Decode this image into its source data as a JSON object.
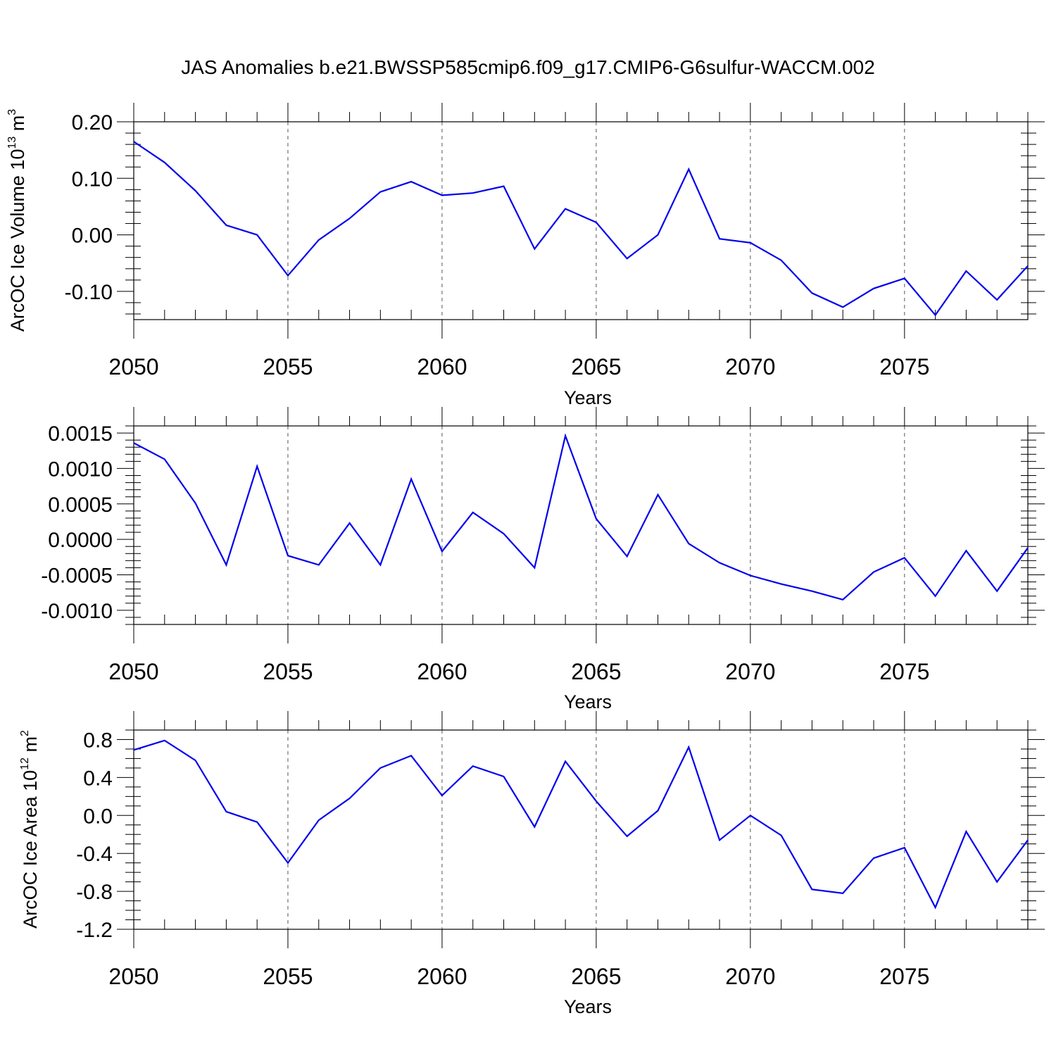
{
  "title": "JAS Anomalies b.e21.BWSSP585cmip6.f09_g17.CMIP6-G6sulfur-WACCM.002",
  "colors": {
    "series": "#0000ee",
    "frame": "#000000",
    "grid": "#555555"
  },
  "chart_data": [
    {
      "type": "line",
      "xlabel": "Years",
      "ylabel": "ArcOC Ice Volume 10",
      "ylabel_exp": "13",
      "ylabel_unit": " m",
      "ylabel_unit_exp": "3",
      "xlim": [
        2050,
        2079
      ],
      "ylim": [
        -0.15,
        0.2
      ],
      "xticks": [
        2050,
        2055,
        2060,
        2065,
        2070,
        2075
      ],
      "xtick_labels": [
        "2050",
        "2055",
        "2060",
        "2065",
        "2070",
        "2075"
      ],
      "yticks": [
        0.2,
        0.1,
        0.0,
        -0.1
      ],
      "ytick_labels": [
        "0.20",
        "0.10",
        "0.00",
        "-0.10"
      ],
      "yminor_step": 0.02,
      "vgrid": [
        2055,
        2060,
        2065,
        2070,
        2075
      ],
      "x": [
        2050,
        2051,
        2052,
        2053,
        2054,
        2055,
        2056,
        2057,
        2058,
        2059,
        2060,
        2061,
        2062,
        2063,
        2064,
        2065,
        2066,
        2067,
        2068,
        2069,
        2070,
        2071,
        2072,
        2073,
        2074,
        2075,
        2076,
        2077,
        2078,
        2079
      ],
      "values": [
        0.165,
        0.128,
        0.078,
        0.017,
        0.0,
        -0.072,
        -0.009,
        0.029,
        0.076,
        0.094,
        0.07,
        0.074,
        0.086,
        -0.025,
        0.046,
        0.022,
        -0.042,
        0.0,
        0.116,
        -0.007,
        -0.014,
        -0.045,
        -0.103,
        -0.128,
        -0.095,
        -0.077,
        -0.142,
        -0.064,
        -0.115,
        -0.055
      ]
    },
    {
      "type": "line",
      "xlabel": "Years",
      "ylabel": "",
      "xlim": [
        2050,
        2079
      ],
      "ylim": [
        -0.0012,
        0.0016
      ],
      "xticks": [
        2050,
        2055,
        2060,
        2065,
        2070,
        2075
      ],
      "xtick_labels": [
        "2050",
        "2055",
        "2060",
        "2065",
        "2070",
        "2075"
      ],
      "yticks": [
        0.0015,
        0.001,
        0.0005,
        0.0,
        -0.0005,
        -0.001
      ],
      "ytick_labels": [
        "0.0015",
        "0.0010",
        "0.0005",
        "0.0000",
        "-0.0005",
        "-0.0010"
      ],
      "yminor_step": 0.0001,
      "vgrid": [
        2055,
        2060,
        2065,
        2070,
        2075
      ],
      "x": [
        2050,
        2051,
        2052,
        2053,
        2054,
        2055,
        2056,
        2057,
        2058,
        2059,
        2060,
        2061,
        2062,
        2063,
        2064,
        2065,
        2066,
        2067,
        2068,
        2069,
        2070,
        2071,
        2072,
        2073,
        2074,
        2075,
        2076,
        2077,
        2078,
        2079
      ],
      "values": [
        0.00136,
        0.00113,
        0.00051,
        -0.00036,
        0.00103,
        -0.00023,
        -0.00036,
        0.00023,
        -0.00036,
        0.00085,
        -0.00017,
        0.00038,
        8e-05,
        -0.0004,
        0.00146,
        0.00029,
        -0.00024,
        0.00063,
        -6e-05,
        -0.00033,
        -0.00051,
        -0.00063,
        -0.00073,
        -0.00085,
        -0.00046,
        -0.00026,
        -0.0008,
        -0.00016,
        -0.00073,
        -0.00012
      ]
    },
    {
      "type": "line",
      "xlabel": "Years",
      "ylabel": "ArcOC Ice Area 10",
      "ylabel_exp": "12",
      "ylabel_unit": " m",
      "ylabel_unit_exp": "2",
      "xlim": [
        2050,
        2079
      ],
      "ylim": [
        -1.2,
        0.9
      ],
      "xticks": [
        2050,
        2055,
        2060,
        2065,
        2070,
        2075
      ],
      "xtick_labels": [
        "2050",
        "2055",
        "2060",
        "2065",
        "2070",
        "2075"
      ],
      "yticks": [
        0.8,
        0.4,
        0.0,
        -0.4,
        -0.8,
        -1.2
      ],
      "ytick_labels": [
        "0.8",
        "0.4",
        "0.0",
        "-0.4",
        "-0.8",
        "-1.2"
      ],
      "yminor_step": 0.1,
      "vgrid": [
        2055,
        2060,
        2065,
        2070,
        2075
      ],
      "x": [
        2050,
        2051,
        2052,
        2053,
        2054,
        2055,
        2056,
        2057,
        2058,
        2059,
        2060,
        2061,
        2062,
        2063,
        2064,
        2065,
        2066,
        2067,
        2068,
        2069,
        2070,
        2071,
        2072,
        2073,
        2074,
        2075,
        2076,
        2077,
        2078,
        2079
      ],
      "values": [
        0.69,
        0.79,
        0.58,
        0.04,
        -0.07,
        -0.5,
        -0.05,
        0.18,
        0.5,
        0.63,
        0.21,
        0.52,
        0.41,
        -0.12,
        0.57,
        0.15,
        -0.22,
        0.05,
        0.72,
        -0.26,
        0.0,
        -0.21,
        -0.78,
        -0.82,
        -0.45,
        -0.34,
        -0.97,
        -0.17,
        -0.7,
        -0.26
      ]
    }
  ]
}
